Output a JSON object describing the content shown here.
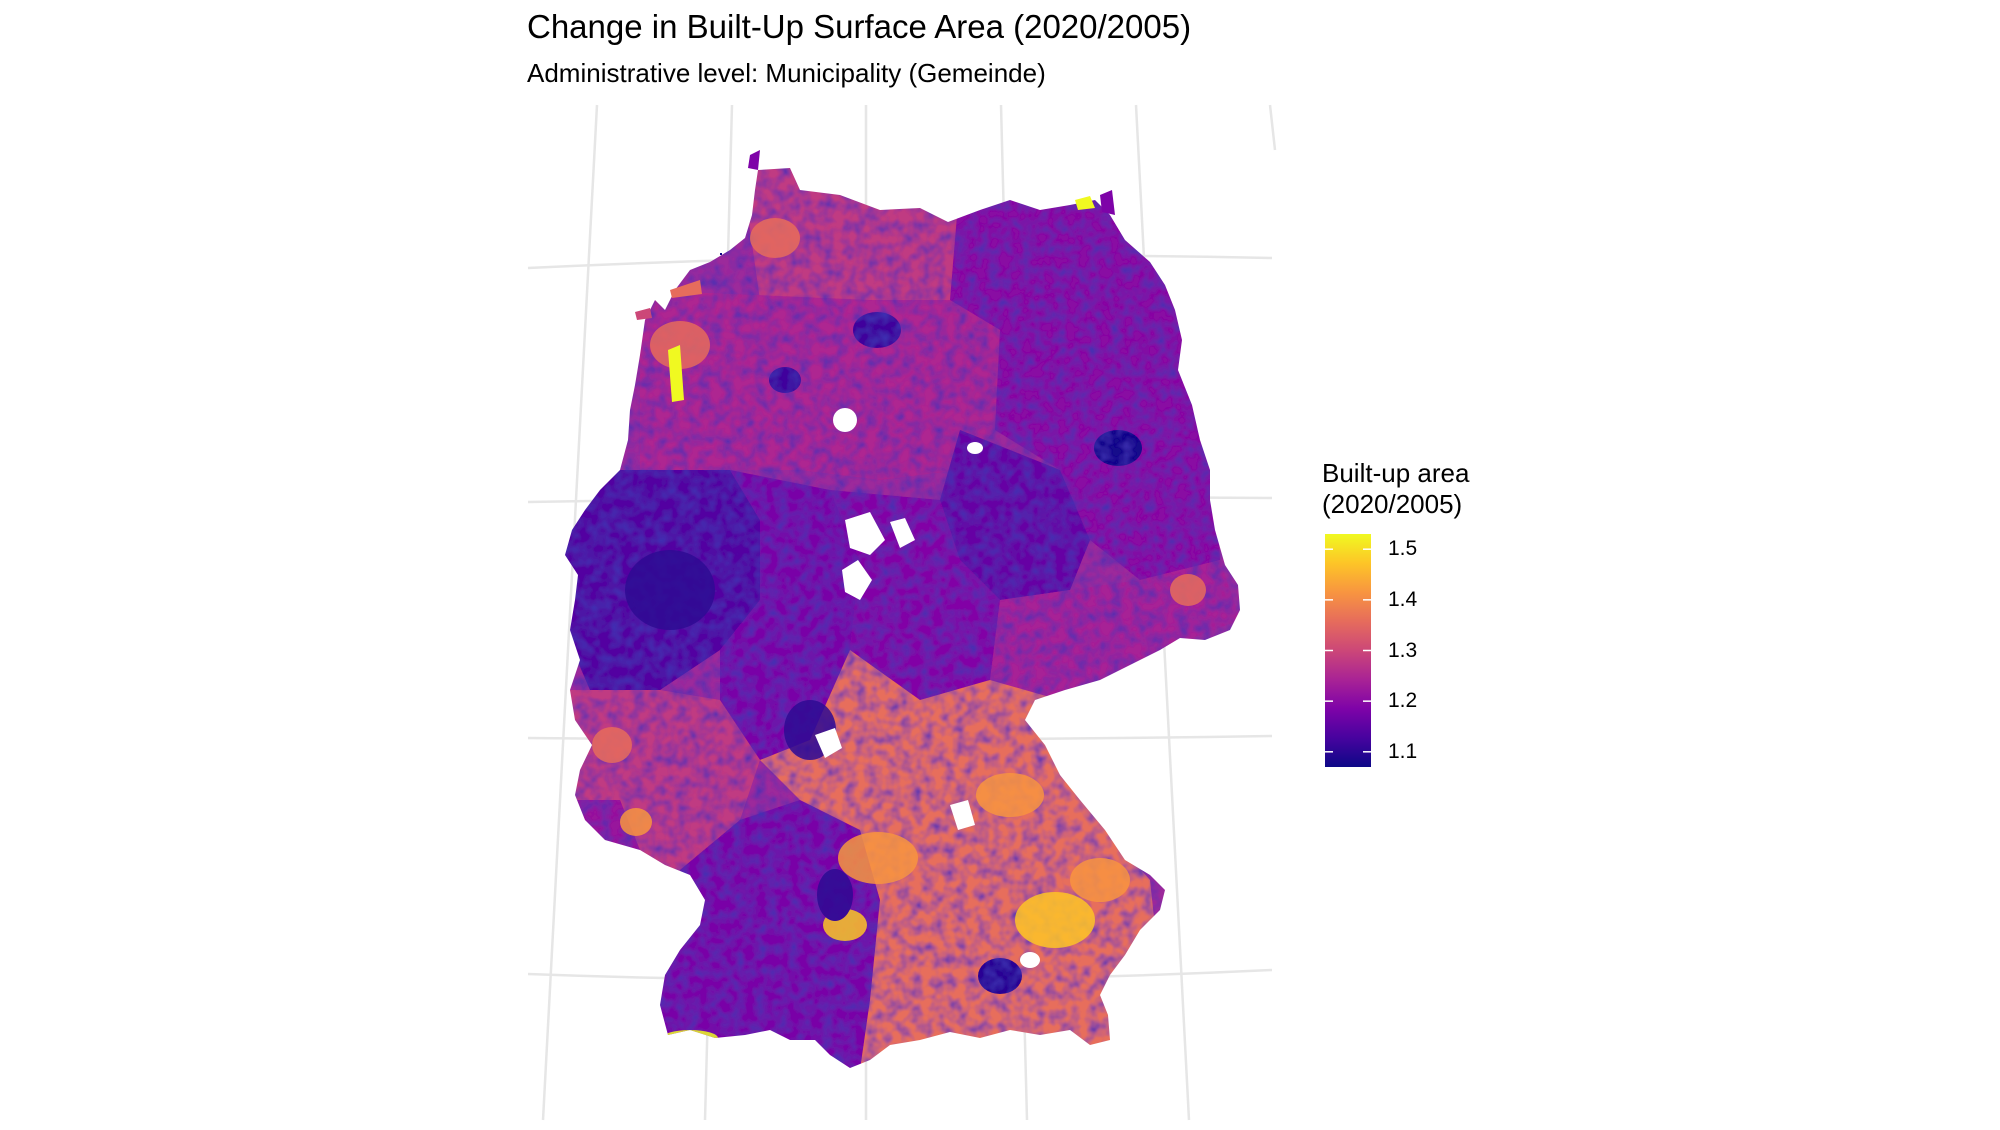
{
  "title": "Change in Built-Up Surface Area (2020/2005)",
  "subtitle": "Administrative level: Municipality (Gemeinde)",
  "legend": {
    "title_line1": "Built-up area",
    "title_line2": "(2020/2005)",
    "range": [
      1.07,
      1.53
    ],
    "ticks": [
      {
        "value": 1.5,
        "label": "1.5"
      },
      {
        "value": 1.4,
        "label": "1.4"
      },
      {
        "value": 1.3,
        "label": "1.3"
      },
      {
        "value": 1.2,
        "label": "1.2"
      },
      {
        "value": 1.1,
        "label": "1.1"
      }
    ],
    "palette": [
      "#0d0887",
      "#47039f",
      "#7e03a8",
      "#a92395",
      "#cc4778",
      "#e66c5c",
      "#f89540",
      "#fdc527",
      "#f0f921"
    ]
  },
  "colors": {
    "background": "#ffffff",
    "graticule": "#e6e6e6",
    "low": "#0d0887",
    "high": "#f0f921"
  },
  "regions": [
    {
      "id": "schleswig-holstein",
      "value": 1.28
    },
    {
      "id": "hamburg",
      "value": 1.12
    },
    {
      "id": "mecklenburg-vorpommern",
      "value": 1.2
    },
    {
      "id": "niedersachsen",
      "value": 1.25
    },
    {
      "id": "bremen",
      "value": 1.12
    },
    {
      "id": "berlin",
      "value": 1.08
    },
    {
      "id": "brandenburg",
      "value": 1.2
    },
    {
      "id": "sachsen-anhalt",
      "value": 1.16
    },
    {
      "id": "nordrhein-westfalen",
      "value": 1.14
    },
    {
      "id": "hessen",
      "value": 1.18
    },
    {
      "id": "thueringen",
      "value": 1.19
    },
    {
      "id": "sachsen",
      "value": 1.24
    },
    {
      "id": "rheinland-pfalz",
      "value": 1.28
    },
    {
      "id": "saarland",
      "value": 1.22
    },
    {
      "id": "baden-wuerttemberg",
      "value": 1.18
    },
    {
      "id": "bayern",
      "value": 1.36
    },
    {
      "id": "muenchen",
      "value": 1.1
    }
  ]
}
